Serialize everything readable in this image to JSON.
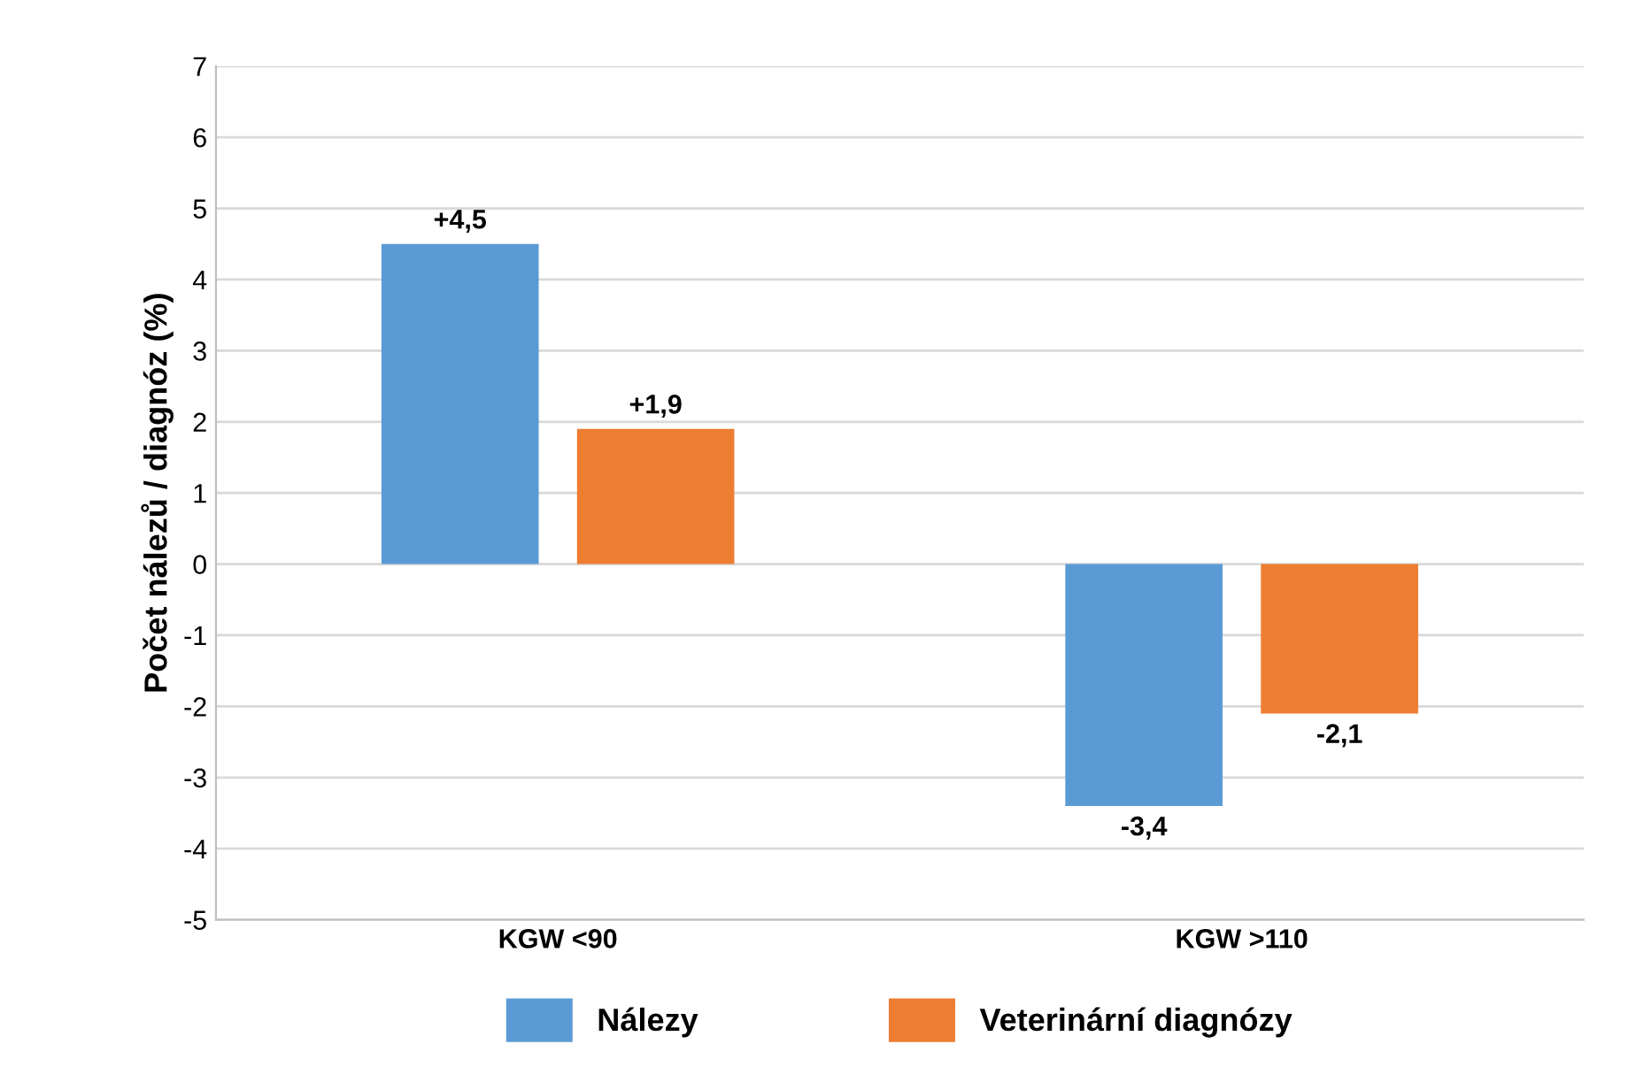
{
  "chart_data": {
    "type": "bar",
    "ylabel": "Počet nálezů / diagnóz (%)",
    "categories": [
      "KGW <90",
      "KGW >110"
    ],
    "series": [
      {
        "name": "Nálezy",
        "color": "#5b9bd5",
        "values": [
          4.5,
          -3.4
        ],
        "value_labels": [
          "+4,5",
          "-3,4"
        ]
      },
      {
        "name": "Veterinární diagnózy",
        "color": "#ed7d31",
        "values": [
          1.9,
          -2.1
        ],
        "value_labels": [
          "+1,9",
          "-2,1"
        ]
      }
    ],
    "ylim": [
      -5,
      7
    ],
    "yticks": [
      -5,
      -4,
      -3,
      -2,
      -1,
      0,
      1,
      2,
      3,
      4,
      5,
      6,
      7
    ],
    "grid": "y",
    "legend": "bottom"
  }
}
